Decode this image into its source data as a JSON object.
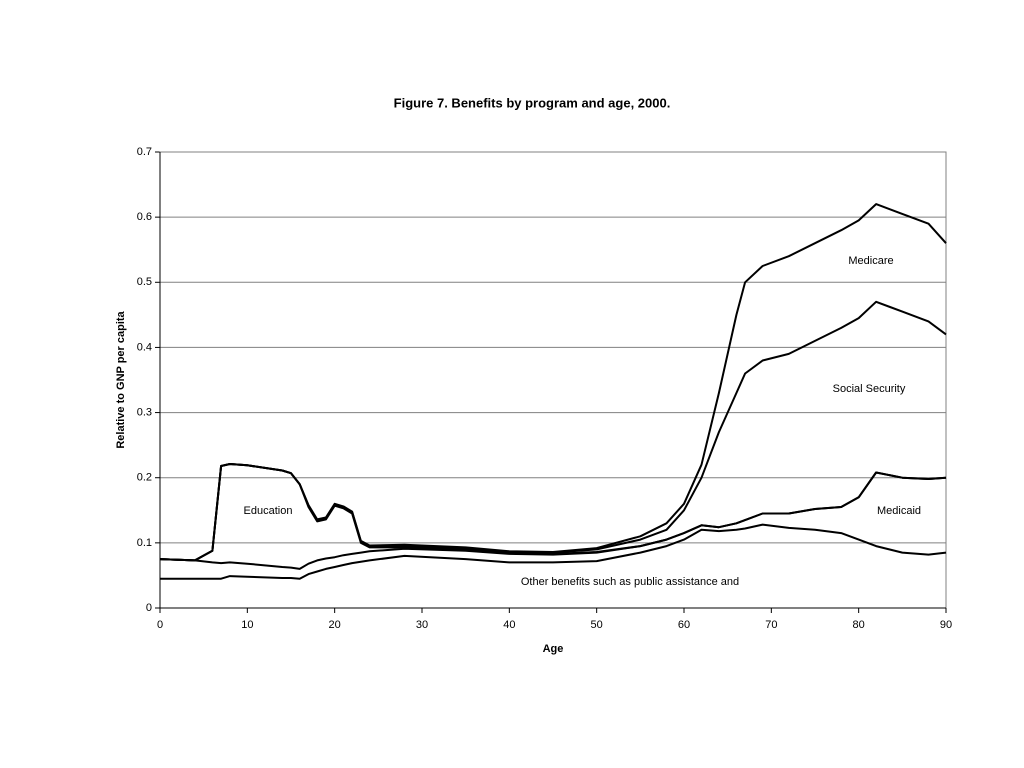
{
  "chart_data": {
    "type": "stacked-line",
    "title": "Figure 7.  Benefits by program and age, 2000.",
    "x_label": "Age",
    "y_label": "Relative to GNP per capita",
    "x": [
      0,
      4,
      6,
      7,
      8,
      10,
      14,
      15,
      16,
      17,
      18,
      19,
      20,
      21,
      22,
      23,
      24,
      28,
      35,
      40,
      45,
      50,
      55,
      58,
      60,
      62,
      64,
      66,
      67,
      69,
      72,
      75,
      78,
      80,
      82,
      85,
      88,
      90
    ],
    "series": [
      {
        "name": "Other benefits such as public assistance and",
        "color": "#000000",
        "values": [
          0.045,
          0.045,
          0.045,
          0.045,
          0.049,
          0.048,
          0.046,
          0.046,
          0.045,
          0.052,
          0.056,
          0.06,
          0.063,
          0.066,
          0.069,
          0.071,
          0.073,
          0.08,
          0.075,
          0.07,
          0.07,
          0.072,
          0.085,
          0.095,
          0.105,
          0.12,
          0.118,
          0.12,
          0.122,
          0.128,
          0.123,
          0.12,
          0.115,
          0.105,
          0.095,
          0.085,
          0.082,
          0.085
        ]
      },
      {
        "name": "Medicaid",
        "color": "#000000",
        "values": [
          0.03,
          0.028,
          0.025,
          0.024,
          0.021,
          0.02,
          0.017,
          0.016,
          0.015,
          0.016,
          0.017,
          0.016,
          0.015,
          0.015,
          0.014,
          0.014,
          0.014,
          0.011,
          0.013,
          0.013,
          0.012,
          0.013,
          0.01,
          0.01,
          0.01,
          0.007,
          0.006,
          0.01,
          0.013,
          0.017,
          0.022,
          0.032,
          0.04,
          0.065,
          0.113,
          0.115,
          0.116,
          0.115
        ]
      },
      {
        "name": "Education",
        "color": "#000000",
        "values": [
          0,
          0,
          0.018,
          0.149,
          0.151,
          0.151,
          0.148,
          0.145,
          0.13,
          0.087,
          0.06,
          0.06,
          0.079,
          0.072,
          0.062,
          0.015,
          0.006,
          0.002,
          0.001,
          0.001,
          0.001,
          0.001,
          0,
          0,
          0,
          0,
          0,
          0,
          0,
          0,
          0,
          0,
          0,
          0,
          0,
          0,
          0,
          0
        ]
      },
      {
        "name": "Social Security",
        "color": "#000000",
        "values": [
          0,
          0,
          0,
          0,
          0,
          0,
          0,
          0,
          0,
          0.002,
          0.002,
          0.002,
          0.002,
          0.002,
          0.002,
          0.002,
          0.002,
          0.002,
          0.002,
          0.002,
          0.002,
          0.004,
          0.01,
          0.015,
          0.035,
          0.073,
          0.146,
          0.2,
          0.225,
          0.235,
          0.245,
          0.258,
          0.275,
          0.275,
          0.262,
          0.255,
          0.242,
          0.22
        ]
      },
      {
        "name": "Medicare",
        "color": "#000000",
        "values": [
          0,
          0,
          0,
          0,
          0,
          0,
          0,
          0,
          0,
          0.001,
          0.001,
          0.001,
          0.001,
          0.001,
          0.001,
          0.001,
          0.001,
          0.002,
          0.002,
          0.001,
          0.001,
          0.002,
          0.005,
          0.01,
          0.01,
          0.02,
          0.06,
          0.12,
          0.14,
          0.145,
          0.15,
          0.15,
          0.15,
          0.15,
          0.15,
          0.15,
          0.15,
          0.14
        ]
      }
    ],
    "xlim": [
      0,
      90
    ],
    "xticks": [
      0,
      10,
      20,
      30,
      40,
      50,
      60,
      70,
      80,
      90
    ],
    "ylim": [
      0,
      0.7
    ],
    "yticks": [
      0,
      0.1,
      0.2,
      0.3,
      0.4,
      0.5,
      0.6,
      0.7
    ],
    "grid": true
  }
}
